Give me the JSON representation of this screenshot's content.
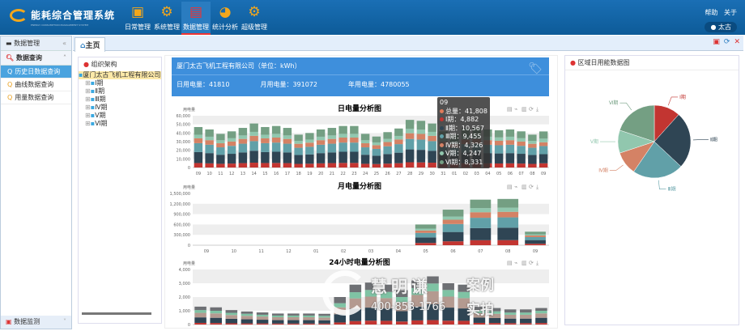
{
  "app": {
    "title": "能耗综合管理系统",
    "subtitle": "ENERGY CONSUMPTION MANAGEMENT SYSTEM"
  },
  "nav": [
    {
      "label": "日常管理",
      "icon": "calendar-icon"
    },
    {
      "label": "系统管理",
      "icon": "gears-icon"
    },
    {
      "label": "数据管理",
      "icon": "database-icon",
      "active": true
    },
    {
      "label": "统计分析",
      "icon": "pie-chart-icon"
    },
    {
      "label": "超级管理",
      "icon": "gears-icon"
    }
  ],
  "header_right": {
    "help": "帮助",
    "about": "关于",
    "user": "太古"
  },
  "sidebar": {
    "header": "数据管理",
    "group": "数据查询",
    "items": [
      {
        "label": "历史日数据查询",
        "active": true
      },
      {
        "label": "曲线数据查询"
      },
      {
        "label": "用量数据查询"
      }
    ],
    "bottom": "数据监测"
  },
  "tabs": [
    {
      "label": "主页"
    }
  ],
  "tree": {
    "title": "组织架构",
    "root": "厦门太古飞机工程有限公司",
    "children": [
      "Ⅰ期",
      "Ⅱ期",
      "Ⅲ期",
      "Ⅳ期",
      "Ⅴ期",
      "Ⅵ期"
    ]
  },
  "banner": {
    "title": "厦门太古飞机工程有限公司（单位：kWh）",
    "day_label": "日用电量：41810",
    "month_label": "月用电量：391072",
    "year_label": "年用电量：4780055"
  },
  "tooltip": {
    "date": "09",
    "rows": [
      {
        "label": "总量：41,808",
        "color": "#e07b5a"
      },
      {
        "label": "Ⅰ期：4,882",
        "color": "#c23531"
      },
      {
        "label": "Ⅱ期：10,567",
        "color": "#2f4554"
      },
      {
        "label": "Ⅲ期：9,455",
        "color": "#61a0a8"
      },
      {
        "label": "Ⅳ期：4,326",
        "color": "#d48265"
      },
      {
        "label": "Ⅴ期：4,247",
        "color": "#91c7ae"
      },
      {
        "label": "Ⅵ期：8,331",
        "color": "#749f83"
      }
    ]
  },
  "pie_panel": {
    "title": "区域日用能数据图"
  },
  "watermark": {
    "brand": "慧明谦",
    "tag1": "案例",
    "phone": "400-853-1766",
    "tag2": "实拍"
  },
  "colors": [
    "#c23531",
    "#2f4554",
    "#61a0a8",
    "#d48265",
    "#91c7ae",
    "#749f83"
  ],
  "chart_data": [
    {
      "type": "bar",
      "stacked": true,
      "title": "日电量分析图",
      "ylabel": "用电量",
      "ylim": [
        0,
        60000
      ],
      "yticks": [
        0,
        10000,
        20000,
        30000,
        40000,
        50000,
        60000
      ],
      "categories": [
        "09",
        "10",
        "11",
        "12",
        "13",
        "14",
        "15",
        "16",
        "17",
        "18",
        "19",
        "20",
        "21",
        "22",
        "23",
        "24",
        "25",
        "26",
        "27",
        "28",
        "29",
        "30",
        "31",
        "01",
        "02",
        "03",
        "04",
        "05",
        "06",
        "07",
        "08",
        "09"
      ],
      "series": [
        {
          "name": "Ⅰ期",
          "values": [
            5200,
            4800,
            4300,
            4600,
            5100,
            5600,
            5200,
            5300,
            5100,
            4200,
            4400,
            4800,
            5100,
            5300,
            5300,
            4300,
            4000,
            4500,
            5000,
            6100,
            5900,
            5600,
            4600,
            4200,
            5000,
            5100,
            4800,
            4700,
            4800,
            4600,
            4200,
            4882
          ]
        },
        {
          "name": "Ⅱ期",
          "values": [
            12700,
            11900,
            10500,
            11300,
            12400,
            13800,
            12700,
            13000,
            12400,
            10300,
            10800,
            11900,
            12400,
            13000,
            13000,
            10500,
            9700,
            11100,
            12200,
            14900,
            14600,
            13800,
            11300,
            10300,
            12200,
            12400,
            11900,
            11600,
            11900,
            11300,
            10300,
            10567
          ]
        },
        {
          "name": "Ⅲ期",
          "values": [
            10300,
            9700,
            8600,
            9200,
            10100,
            11200,
            10300,
            10600,
            10100,
            8400,
            8800,
            9700,
            10100,
            10600,
            10600,
            8600,
            7900,
            9000,
            9900,
            12100,
            11900,
            11200,
            9200,
            8400,
            9900,
            10100,
            9700,
            9500,
            9700,
            9200,
            8400,
            9455
          ]
        },
        {
          "name": "Ⅳ期",
          "values": [
            5600,
            5300,
            4700,
            5000,
            5500,
            6100,
            5600,
            5800,
            5500,
            4600,
            4800,
            5300,
            5500,
            5800,
            5800,
            4700,
            4300,
            4900,
            5400,
            6600,
            6500,
            6100,
            5000,
            4600,
            5400,
            5500,
            5300,
            5200,
            5300,
            5000,
            4600,
            4326
          ]
        },
        {
          "name": "Ⅴ期",
          "values": [
            4200,
            4000,
            3500,
            3800,
            4100,
            4600,
            4200,
            4300,
            4100,
            3400,
            3600,
            4000,
            4100,
            4300,
            4300,
            3500,
            3200,
            3700,
            4100,
            5000,
            4900,
            4600,
            3800,
            3400,
            4100,
            4100,
            4000,
            3900,
            4000,
            3800,
            3400,
            4247
          ]
        },
        {
          "name": "Ⅵ期",
          "values": [
            8900,
            8400,
            7400,
            8000,
            8700,
            9700,
            8900,
            9100,
            8700,
            7200,
            7600,
            8400,
            8700,
            9100,
            9100,
            7400,
            6800,
            7800,
            8600,
            10500,
            10300,
            9700,
            8000,
            7200,
            8600,
            8700,
            8400,
            8200,
            8400,
            8000,
            7200,
            8331
          ]
        }
      ]
    },
    {
      "type": "bar",
      "stacked": true,
      "title": "月电量分析图",
      "ylabel": "用电量",
      "ylim": [
        0,
        1500000
      ],
      "yticks": [
        0,
        300000,
        600000,
        900000,
        1200000,
        1500000
      ],
      "categories": [
        "09",
        "10",
        "11",
        "12",
        "01",
        "02",
        "03",
        "04",
        "05",
        "06",
        "07",
        "08",
        "09"
      ],
      "series": [
        {
          "name": "Ⅰ期",
          "values": [
            0,
            0,
            0,
            0,
            0,
            0,
            0,
            0,
            66000,
            113000,
            145000,
            147000,
            43000
          ]
        },
        {
          "name": "Ⅱ期",
          "values": [
            0,
            0,
            0,
            0,
            0,
            0,
            0,
            0,
            160000,
            270000,
            350000,
            360000,
            106000
          ]
        },
        {
          "name": "Ⅲ期",
          "values": [
            0,
            0,
            0,
            0,
            0,
            0,
            0,
            0,
            130000,
            230000,
            300000,
            300000,
            86000
          ]
        },
        {
          "name": "Ⅳ期",
          "values": [
            0,
            0,
            0,
            0,
            0,
            0,
            0,
            0,
            70000,
            125000,
            160000,
            160000,
            47000
          ]
        },
        {
          "name": "Ⅴ期",
          "values": [
            0,
            0,
            0,
            0,
            0,
            0,
            0,
            0,
            55000,
            92000,
            120000,
            120000,
            35000
          ]
        },
        {
          "name": "Ⅵ期",
          "values": [
            0,
            0,
            0,
            0,
            0,
            0,
            0,
            0,
            119000,
            200000,
            245000,
            253000,
            74000
          ]
        }
      ]
    },
    {
      "type": "bar",
      "stacked": true,
      "title": "24小时电量分析图",
      "ylabel": "用电量",
      "ylim": [
        0,
        4000
      ],
      "yticks": [
        0,
        1000,
        2000,
        3000,
        4000
      ],
      "categories": [
        "0",
        "1",
        "2",
        "3",
        "4",
        "5",
        "6",
        "7",
        "8",
        "9",
        "10",
        "11",
        "12",
        "13",
        "14",
        "15",
        "16",
        "17",
        "18",
        "19",
        "20",
        "21",
        "22"
      ],
      "series": [
        {
          "values": [
            120,
            110,
            90,
            80,
            80,
            70,
            70,
            70,
            70,
            150,
            250,
            280,
            270,
            220,
            300,
            320,
            280,
            270,
            120,
            110,
            100,
            100,
            110
          ]
        },
        {
          "values": [
            400,
            380,
            330,
            300,
            270,
            250,
            250,
            250,
            240,
            600,
            900,
            950,
            900,
            750,
            1000,
            1150,
            950,
            900,
            380,
            360,
            330,
            330,
            380
          ]
        },
        {
          "values": [
            330,
            320,
            270,
            250,
            230,
            210,
            210,
            210,
            200,
            500,
            750,
            800,
            750,
            650,
            850,
            950,
            800,
            750,
            330,
            310,
            280,
            280,
            320
          ]
        },
        {
          "values": [
            200,
            190,
            160,
            150,
            130,
            120,
            120,
            120,
            120,
            300,
            450,
            480,
            450,
            380,
            500,
            560,
            480,
            450,
            200,
            180,
            160,
            160,
            190
          ]
        },
        {
          "values": [
            250,
            250,
            200,
            170,
            170,
            150,
            150,
            150,
            150,
            450,
            550,
            540,
            530,
            500,
            550,
            520,
            490,
            530,
            270,
            240,
            230,
            230,
            200
          ]
        }
      ]
    },
    {
      "type": "pie",
      "title": "区域日用能数据图",
      "categories": [
        "Ⅰ期",
        "Ⅱ期",
        "Ⅲ期",
        "Ⅳ期",
        "Ⅴ期",
        "Ⅵ期"
      ],
      "values": [
        4882,
        10567,
        9455,
        4326,
        4247,
        8331
      ]
    }
  ]
}
